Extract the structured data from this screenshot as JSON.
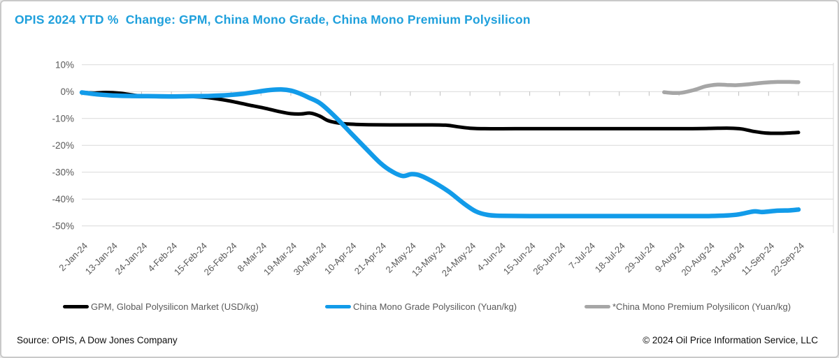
{
  "header": {
    "title": "OPIS 2024 YTD %  Change: GPM, China Mono Grade, China Mono Premium Polysilicon",
    "title_color": "#1FA0DC"
  },
  "chart_data": {
    "type": "line",
    "title": "OPIS 2024 YTD % Change: GPM, China Mono Grade, China Mono Premium Polysilicon",
    "xlabel": "",
    "ylabel": "YTD % change",
    "grid": true,
    "legend_position": "bottom",
    "x_axis": {
      "categories": [
        "2-Jan-24",
        "13-Jan-24",
        "24-Jan-24",
        "4-Feb-24",
        "15-Feb-24",
        "26-Feb-24",
        "8-Mar-24",
        "19-Mar-24",
        "30-Mar-24",
        "10-Apr-24",
        "21-Apr-24",
        "2-May-24",
        "13-May-24",
        "24-May-24",
        "4-Jun-24",
        "15-Jun-24",
        "26-Jun-24",
        "7-Jul-24",
        "18-Jul-24",
        "29-Jul-24",
        "9-Aug-24",
        "20-Aug-24",
        "31-Aug-24",
        "11-Sep-24",
        "22-Sep-24"
      ],
      "label_color": "#595959",
      "label_angle_deg": -45
    },
    "y_axis": {
      "range": [
        -50,
        10
      ],
      "unit": "%",
      "label_color": "#595959",
      "ticks": [
        {
          "value": 10,
          "label": "10%"
        },
        {
          "value": 0,
          "label": "0%"
        },
        {
          "value": -10,
          "label": "-10%"
        },
        {
          "value": -20,
          "label": "-20%"
        },
        {
          "value": -30,
          "label": "-30%"
        },
        {
          "value": -40,
          "label": "-40%"
        },
        {
          "value": -50,
          "label": "-50%"
        }
      ]
    },
    "colors": {
      "gridline": "#D9D9D9",
      "axis_tick": "#BFBFBF",
      "plot_border": "#D9D9D9"
    },
    "series": [
      {
        "key": "gpm",
        "legend_label": "GPM, Global Polysilicon Market (USD/kg)",
        "color": "#000000",
        "stroke_width": 5,
        "points": [
          [
            0,
            -0.2
          ],
          [
            0.4,
            -0.5
          ],
          [
            0.8,
            -0.3
          ],
          [
            1.3,
            -0.6
          ],
          [
            1.8,
            -1.4
          ],
          [
            2.3,
            -1.8
          ],
          [
            3.0,
            -1.9
          ],
          [
            3.6,
            -1.8
          ],
          [
            4.1,
            -2.1
          ],
          [
            4.6,
            -2.8
          ],
          [
            5.1,
            -3.8
          ],
          [
            5.6,
            -5.0
          ],
          [
            6.1,
            -6.1
          ],
          [
            6.6,
            -7.4
          ],
          [
            7.0,
            -8.2
          ],
          [
            7.35,
            -8.3
          ],
          [
            7.65,
            -8.0
          ],
          [
            7.95,
            -9.0
          ],
          [
            8.25,
            -10.8
          ],
          [
            8.6,
            -11.7
          ],
          [
            9.0,
            -12.1
          ],
          [
            9.6,
            -12.3
          ],
          [
            10.5,
            -12.4
          ],
          [
            11.5,
            -12.4
          ],
          [
            12.2,
            -12.5
          ],
          [
            12.6,
            -13.1
          ],
          [
            13.0,
            -13.6
          ],
          [
            13.5,
            -13.8
          ],
          [
            14.5,
            -13.8
          ],
          [
            16,
            -13.8
          ],
          [
            18,
            -13.8
          ],
          [
            20,
            -13.8
          ],
          [
            21,
            -13.7
          ],
          [
            21.7,
            -13.6
          ],
          [
            22.1,
            -13.9
          ],
          [
            22.5,
            -14.8
          ],
          [
            22.9,
            -15.4
          ],
          [
            23.4,
            -15.5
          ],
          [
            24,
            -15.2
          ]
        ]
      },
      {
        "key": "china-mono-grade",
        "legend_label": "China Mono Grade Polysilicon (Yuan/kg)",
        "color": "#129BE9",
        "stroke_width": 6.5,
        "points": [
          [
            0,
            -0.3
          ],
          [
            0.5,
            -1.0
          ],
          [
            1.0,
            -1.4
          ],
          [
            1.6,
            -1.6
          ],
          [
            2.2,
            -1.7
          ],
          [
            3.0,
            -1.8
          ],
          [
            3.7,
            -1.7
          ],
          [
            4.3,
            -1.6
          ],
          [
            4.9,
            -1.3
          ],
          [
            5.4,
            -0.8
          ],
          [
            5.9,
            0.0
          ],
          [
            6.3,
            0.6
          ],
          [
            6.7,
            0.8
          ],
          [
            7.0,
            0.4
          ],
          [
            7.3,
            -0.7
          ],
          [
            7.6,
            -2.2
          ],
          [
            8.0,
            -4.5
          ],
          [
            8.5,
            -9.5
          ],
          [
            9.0,
            -15.3
          ],
          [
            9.5,
            -21.0
          ],
          [
            10.0,
            -26.6
          ],
          [
            10.4,
            -29.8
          ],
          [
            10.75,
            -31.4
          ],
          [
            11.05,
            -30.7
          ],
          [
            11.35,
            -31.3
          ],
          [
            11.8,
            -33.8
          ],
          [
            12.3,
            -37.3
          ],
          [
            12.8,
            -41.7
          ],
          [
            13.2,
            -44.6
          ],
          [
            13.6,
            -45.9
          ],
          [
            14.0,
            -46.2
          ],
          [
            15,
            -46.3
          ],
          [
            16,
            -46.3
          ],
          [
            17,
            -46.3
          ],
          [
            18,
            -46.3
          ],
          [
            19,
            -46.3
          ],
          [
            20,
            -46.3
          ],
          [
            21,
            -46.3
          ],
          [
            21.6,
            -46.1
          ],
          [
            22.0,
            -45.7
          ],
          [
            22.5,
            -44.6
          ],
          [
            22.8,
            -44.8
          ],
          [
            23.3,
            -44.3
          ],
          [
            23.7,
            -44.2
          ],
          [
            24,
            -43.9
          ]
        ]
      },
      {
        "key": "china-mono-premium",
        "legend_label": "*China Mono Premium Polysilicon (Yuan/kg)",
        "color": "#A6A6A6",
        "stroke_width": 5.5,
        "points": [
          [
            19.5,
            -0.2
          ],
          [
            19.8,
            -0.5
          ],
          [
            20.1,
            -0.4
          ],
          [
            20.5,
            0.6
          ],
          [
            20.9,
            2.0
          ],
          [
            21.3,
            2.6
          ],
          [
            21.6,
            2.5
          ],
          [
            21.9,
            2.4
          ],
          [
            22.3,
            2.7
          ],
          [
            22.8,
            3.3
          ],
          [
            23.3,
            3.6
          ],
          [
            23.7,
            3.6
          ],
          [
            24,
            3.5
          ]
        ]
      }
    ]
  },
  "footer": {
    "source": "Source: OPIS, A Dow Jones Company",
    "copyright": "© 2024 Oil Price Information Service, LLC"
  }
}
